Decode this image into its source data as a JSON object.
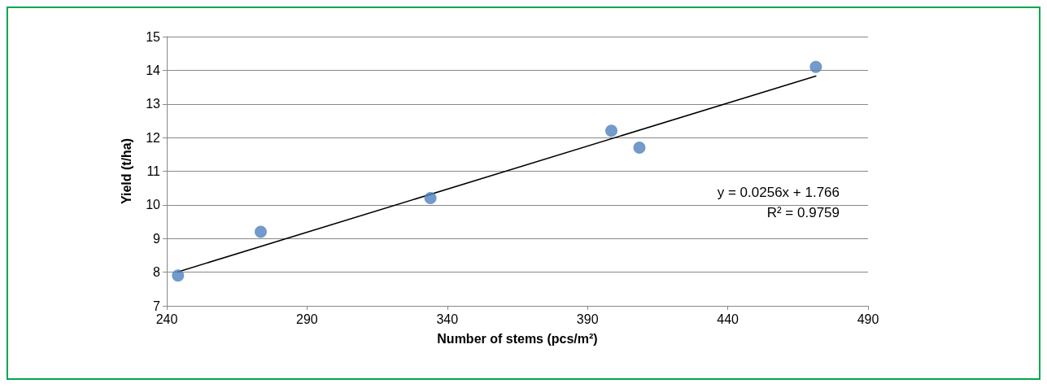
{
  "chart_data": {
    "type": "scatter",
    "xlabel": "Number of stems (pcs/m²)",
    "ylabel": "Yield (t/ha)",
    "x": [
      244,
      273.5,
      334,
      398.5,
      408.5,
      471.4
    ],
    "series": [
      {
        "color": "#4f81bd",
        "marker": "circle",
        "values": [
          7.9,
          9.2,
          10.2,
          12.2,
          11.7,
          14.1
        ]
      },
      {
        "type": "line",
        "color": "#000000",
        "marker": "none",
        "line_style": "solid",
        "x": [
          244,
          471.4
        ],
        "values": [
          8.01,
          13.83
        ]
      }
    ],
    "annotations": [
      "y = 0.0256x + 1.766",
      "R² = 0.9759"
    ],
    "xlim": [
      240,
      490
    ],
    "xticks": [
      240,
      290,
      340,
      390,
      440,
      490
    ],
    "ylim": [
      7,
      15
    ],
    "yticks": [
      7,
      8,
      9,
      10,
      11,
      12,
      13,
      14,
      15
    ],
    "grid": "y",
    "legend": false
  }
}
